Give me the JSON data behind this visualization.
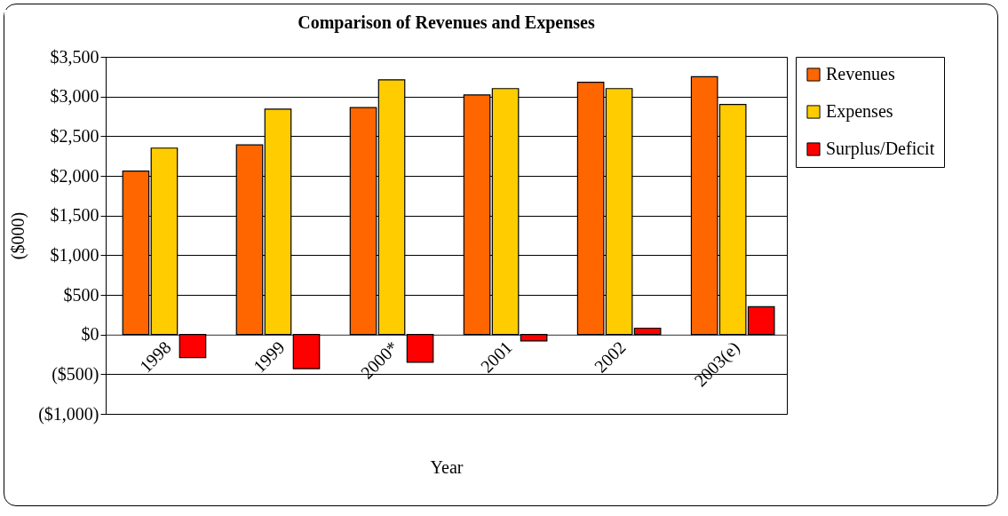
{
  "chart_data": {
    "type": "bar",
    "title": "Comparison of Revenues and Expenses",
    "xlabel": "Year",
    "ylabel": "($000)",
    "categories": [
      "1998",
      "1999",
      "2000*",
      "2001",
      "2002",
      "2003(e)"
    ],
    "series": [
      {
        "name": "Revenues",
        "color": "#ff6600",
        "values": [
          2060,
          2390,
          2860,
          3020,
          3180,
          3250
        ]
      },
      {
        "name": "Expenses",
        "color": "#ffcc00",
        "values": [
          2350,
          2840,
          3210,
          3100,
          3100,
          2900
        ]
      },
      {
        "name": "Surplus/Deficit",
        "color": "#ff0000",
        "values": [
          -290,
          -430,
          -350,
          -80,
          80,
          350
        ]
      }
    ],
    "ylim": [
      -1000,
      3500
    ],
    "yticks": [
      {
        "value": -1000,
        "label": "($1,000)"
      },
      {
        "value": -500,
        "label": "($500)"
      },
      {
        "value": 0,
        "label": "$0"
      },
      {
        "value": 500,
        "label": "$500"
      },
      {
        "value": 1000,
        "label": "$1,000"
      },
      {
        "value": 1500,
        "label": "$1,500"
      },
      {
        "value": 2000,
        "label": "$2,000"
      },
      {
        "value": 2500,
        "label": "$2,500"
      },
      {
        "value": 3000,
        "label": "$3,000"
      },
      {
        "value": 3500,
        "label": "$3,500"
      }
    ],
    "grid": "y",
    "legend": "right"
  }
}
